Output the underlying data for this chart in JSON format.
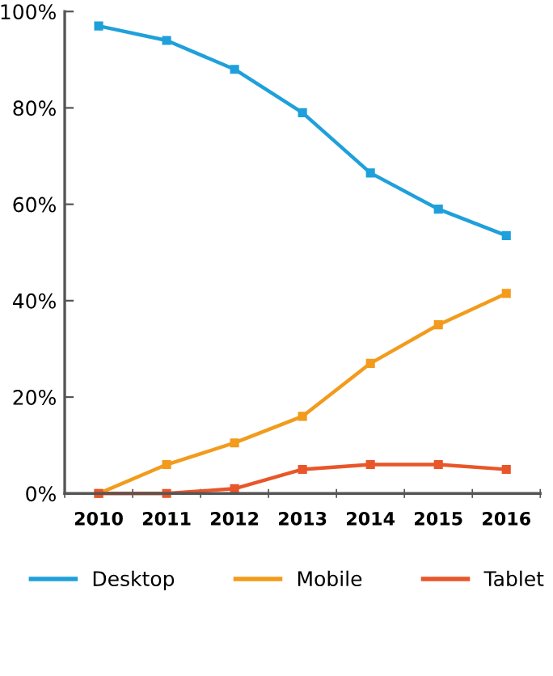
{
  "chart_data": {
    "type": "line",
    "categories": [
      "2010",
      "2011",
      "2012",
      "2013",
      "2014",
      "2015",
      "2016"
    ],
    "series": [
      {
        "name": "Desktop",
        "color": "#1fa0db",
        "values": [
          97,
          94,
          88,
          79,
          66.5,
          59,
          53.5
        ]
      },
      {
        "name": "Mobile",
        "color": "#f29b1c",
        "values": [
          0,
          6,
          10.5,
          16,
          27,
          35,
          41.5
        ]
      },
      {
        "name": "Tablet",
        "color": "#e8562a",
        "values": [
          0,
          0,
          1,
          5,
          6,
          6,
          5
        ]
      }
    ],
    "ylim": [
      0,
      100
    ],
    "yticks": [
      {
        "value": 0,
        "label": "0%"
      },
      {
        "value": 20,
        "label": "20%"
      },
      {
        "value": 40,
        "label": "40%"
      },
      {
        "value": 60,
        "label": "60%"
      },
      {
        "value": 80,
        "label": "80%"
      },
      {
        "value": 100,
        "label": "100%"
      }
    ],
    "grid": false,
    "legend": "bottom",
    "marker": "square",
    "line_style": "solid"
  }
}
